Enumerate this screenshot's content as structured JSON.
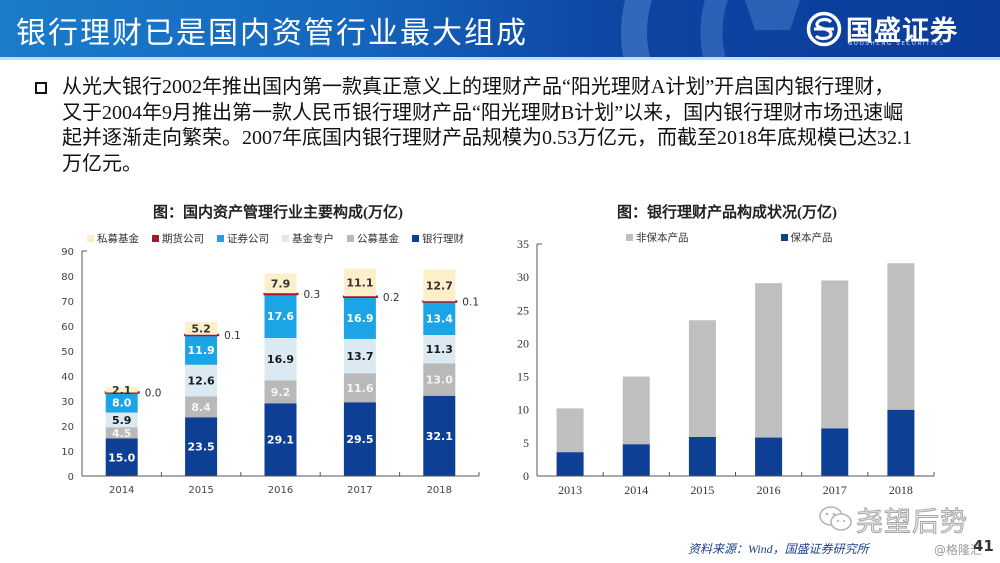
{
  "header": {
    "title": "银行理财已是国内资管行业最大组成",
    "logo_icon": "guosheng-logo-icon",
    "logo_name": "国盛证券",
    "logo_subtitle": "GUOSHENG SECURITIES"
  },
  "colors": {
    "header_start": "#1a7ccb",
    "header_end": "#0b3c9c",
    "header_rule": "#bfe0f4",
    "source_text": "#1d3f8a"
  },
  "body": {
    "bullet_icon": "square-bullet-icon",
    "paragraph_lines": [
      "从光大银行2002年推出国内第一款真正意义上的理财产品“阳光理财A计划”开启国内银行理财，",
      "又于2004年9月推出第一款人民币银行理财产品“阳光理财B计划”以来，国内银行理财市场迅速崛",
      "起并逐渐走向繁荣。2007年底国内银行理财产品规模为0.53万亿元，而截至2018年底规模已达32.1",
      "万亿元。"
    ]
  },
  "chart_data": [
    {
      "type": "bar",
      "stacked": true,
      "title": "图：国内资产管理行业主要构成(万亿)",
      "xlabel": "",
      "ylabel": "",
      "categories": [
        "2014",
        "2015",
        "2016",
        "2017",
        "2018"
      ],
      "ylim": [
        0,
        90
      ],
      "yticks": [
        0,
        10,
        20,
        30,
        40,
        50,
        60,
        70,
        80,
        90
      ],
      "grid": false,
      "legend": "top",
      "show_labels": true,
      "label_decimals": 1,
      "series": [
        {
          "name": "银行理财",
          "values": [
            15.0,
            23.5,
            29.1,
            29.5,
            32.1
          ],
          "color": "#0d3f94",
          "label_color": "#ffffff",
          "label_position": "center"
        },
        {
          "name": "公募基金",
          "values": [
            4.5,
            8.4,
            9.2,
            11.6,
            13.0
          ],
          "color": "#b9b9b9",
          "label_color": "#f4f4f4",
          "label_position": "center"
        },
        {
          "name": "基金专户",
          "values": [
            5.9,
            12.6,
            16.9,
            13.7,
            11.3
          ],
          "color": "#dbe9f3",
          "label_color": "#1a1a1a",
          "label_position": "center"
        },
        {
          "name": "证券公司",
          "values": [
            8.0,
            11.9,
            17.6,
            16.9,
            13.4
          ],
          "color": "#1ba4e6",
          "label_color": "#ffffff",
          "label_position": "center"
        },
        {
          "name": "期货公司",
          "values": [
            0.0,
            0.1,
            0.3,
            0.2,
            0.1
          ],
          "color": "#a3182a",
          "label_color": "#333333",
          "label_position": "outside-right"
        },
        {
          "name": "私募基金",
          "values": [
            2.1,
            5.2,
            7.9,
            11.1,
            12.7
          ],
          "color": "#fcefc9",
          "label_color": "#333333",
          "label_position": "center"
        }
      ]
    },
    {
      "type": "bar",
      "stacked": true,
      "title": "图：银行理财产品构成状况(万亿)",
      "xlabel": "",
      "ylabel": "",
      "categories": [
        "2013",
        "2014",
        "2015",
        "2016",
        "2017",
        "2018"
      ],
      "ylim": [
        0,
        35
      ],
      "yticks": [
        0,
        5,
        10,
        15,
        20,
        25,
        30,
        35
      ],
      "grid": false,
      "legend": "top",
      "show_labels": false,
      "label_decimals": 1,
      "series": [
        {
          "name": "保本产品",
          "values": [
            3.6,
            4.8,
            5.9,
            5.8,
            7.2,
            10.0
          ],
          "color": "#0d3f94"
        },
        {
          "name": "非保本产品",
          "values": [
            6.6,
            10.2,
            17.6,
            23.3,
            22.3,
            22.1
          ],
          "color": "#bfbfbf"
        }
      ]
    }
  ],
  "footer": {
    "source": "资料来源：Wind，国盛证券研究所",
    "watermark_icon": "wechat-icon",
    "watermark": "尧望后势",
    "watermark_handle": "@格隆汇",
    "page_number": "41"
  }
}
